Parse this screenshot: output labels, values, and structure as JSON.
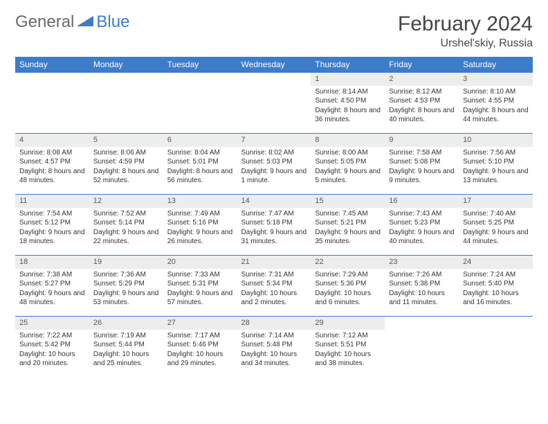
{
  "brand": {
    "general": "General",
    "blue": "Blue"
  },
  "title": "February 2024",
  "location": "Urshel'skiy, Russia",
  "colors": {
    "header_bg": "#3d7cc9",
    "daynum_bg": "#eceded",
    "border": "#3d7cc9",
    "logo_gray": "#6a6a6a",
    "logo_blue": "#3d7cc9"
  },
  "typography": {
    "title_fontsize": 30,
    "location_fontsize": 16,
    "th_fontsize": 12,
    "cell_fontsize": 10
  },
  "weekdays": [
    "Sunday",
    "Monday",
    "Tuesday",
    "Wednesday",
    "Thursday",
    "Friday",
    "Saturday"
  ],
  "leading_blanks": 4,
  "days": [
    {
      "n": "1",
      "sr": "Sunrise: 8:14 AM",
      "ss": "Sunset: 4:50 PM",
      "dl": "Daylight: 8 hours and 36 minutes."
    },
    {
      "n": "2",
      "sr": "Sunrise: 8:12 AM",
      "ss": "Sunset: 4:53 PM",
      "dl": "Daylight: 8 hours and 40 minutes."
    },
    {
      "n": "3",
      "sr": "Sunrise: 8:10 AM",
      "ss": "Sunset: 4:55 PM",
      "dl": "Daylight: 8 hours and 44 minutes."
    },
    {
      "n": "4",
      "sr": "Sunrise: 8:08 AM",
      "ss": "Sunset: 4:57 PM",
      "dl": "Daylight: 8 hours and 48 minutes."
    },
    {
      "n": "5",
      "sr": "Sunrise: 8:06 AM",
      "ss": "Sunset: 4:59 PM",
      "dl": "Daylight: 8 hours and 52 minutes."
    },
    {
      "n": "6",
      "sr": "Sunrise: 8:04 AM",
      "ss": "Sunset: 5:01 PM",
      "dl": "Daylight: 8 hours and 56 minutes."
    },
    {
      "n": "7",
      "sr": "Sunrise: 8:02 AM",
      "ss": "Sunset: 5:03 PM",
      "dl": "Daylight: 9 hours and 1 minute."
    },
    {
      "n": "8",
      "sr": "Sunrise: 8:00 AM",
      "ss": "Sunset: 5:05 PM",
      "dl": "Daylight: 9 hours and 5 minutes."
    },
    {
      "n": "9",
      "sr": "Sunrise: 7:58 AM",
      "ss": "Sunset: 5:08 PM",
      "dl": "Daylight: 9 hours and 9 minutes."
    },
    {
      "n": "10",
      "sr": "Sunrise: 7:56 AM",
      "ss": "Sunset: 5:10 PM",
      "dl": "Daylight: 9 hours and 13 minutes."
    },
    {
      "n": "11",
      "sr": "Sunrise: 7:54 AM",
      "ss": "Sunset: 5:12 PM",
      "dl": "Daylight: 9 hours and 18 minutes."
    },
    {
      "n": "12",
      "sr": "Sunrise: 7:52 AM",
      "ss": "Sunset: 5:14 PM",
      "dl": "Daylight: 9 hours and 22 minutes."
    },
    {
      "n": "13",
      "sr": "Sunrise: 7:49 AM",
      "ss": "Sunset: 5:16 PM",
      "dl": "Daylight: 9 hours and 26 minutes."
    },
    {
      "n": "14",
      "sr": "Sunrise: 7:47 AM",
      "ss": "Sunset: 5:18 PM",
      "dl": "Daylight: 9 hours and 31 minutes."
    },
    {
      "n": "15",
      "sr": "Sunrise: 7:45 AM",
      "ss": "Sunset: 5:21 PM",
      "dl": "Daylight: 9 hours and 35 minutes."
    },
    {
      "n": "16",
      "sr": "Sunrise: 7:43 AM",
      "ss": "Sunset: 5:23 PM",
      "dl": "Daylight: 9 hours and 40 minutes."
    },
    {
      "n": "17",
      "sr": "Sunrise: 7:40 AM",
      "ss": "Sunset: 5:25 PM",
      "dl": "Daylight: 9 hours and 44 minutes."
    },
    {
      "n": "18",
      "sr": "Sunrise: 7:38 AM",
      "ss": "Sunset: 5:27 PM",
      "dl": "Daylight: 9 hours and 48 minutes."
    },
    {
      "n": "19",
      "sr": "Sunrise: 7:36 AM",
      "ss": "Sunset: 5:29 PM",
      "dl": "Daylight: 9 hours and 53 minutes."
    },
    {
      "n": "20",
      "sr": "Sunrise: 7:33 AM",
      "ss": "Sunset: 5:31 PM",
      "dl": "Daylight: 9 hours and 57 minutes."
    },
    {
      "n": "21",
      "sr": "Sunrise: 7:31 AM",
      "ss": "Sunset: 5:34 PM",
      "dl": "Daylight: 10 hours and 2 minutes."
    },
    {
      "n": "22",
      "sr": "Sunrise: 7:29 AM",
      "ss": "Sunset: 5:36 PM",
      "dl": "Daylight: 10 hours and 6 minutes."
    },
    {
      "n": "23",
      "sr": "Sunrise: 7:26 AM",
      "ss": "Sunset: 5:38 PM",
      "dl": "Daylight: 10 hours and 11 minutes."
    },
    {
      "n": "24",
      "sr": "Sunrise: 7:24 AM",
      "ss": "Sunset: 5:40 PM",
      "dl": "Daylight: 10 hours and 16 minutes."
    },
    {
      "n": "25",
      "sr": "Sunrise: 7:22 AM",
      "ss": "Sunset: 5:42 PM",
      "dl": "Daylight: 10 hours and 20 minutes."
    },
    {
      "n": "26",
      "sr": "Sunrise: 7:19 AM",
      "ss": "Sunset: 5:44 PM",
      "dl": "Daylight: 10 hours and 25 minutes."
    },
    {
      "n": "27",
      "sr": "Sunrise: 7:17 AM",
      "ss": "Sunset: 5:46 PM",
      "dl": "Daylight: 10 hours and 29 minutes."
    },
    {
      "n": "28",
      "sr": "Sunrise: 7:14 AM",
      "ss": "Sunset: 5:48 PM",
      "dl": "Daylight: 10 hours and 34 minutes."
    },
    {
      "n": "29",
      "sr": "Sunrise: 7:12 AM",
      "ss": "Sunset: 5:51 PM",
      "dl": "Daylight: 10 hours and 38 minutes."
    }
  ]
}
